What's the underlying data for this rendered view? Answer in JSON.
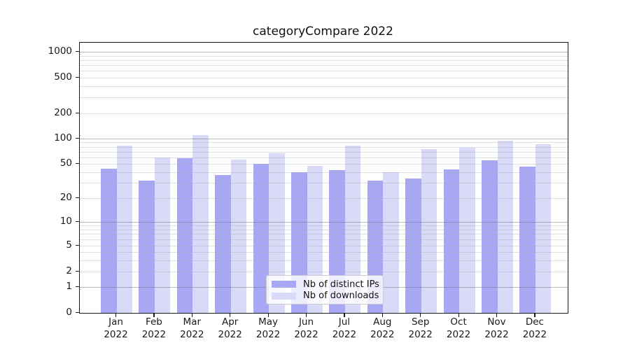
{
  "title": "categoryCompare 2022",
  "chart_data": {
    "type": "bar",
    "title": "categoryCompare 2022",
    "categories": [
      "Jan",
      "Feb",
      "Mar",
      "Apr",
      "May",
      "Jun",
      "Jul",
      "Aug",
      "Sep",
      "Oct",
      "Nov",
      "Dec"
    ],
    "year_label": "2022",
    "series": [
      {
        "name": "Nb of distinct IPs",
        "color": "#a7a7f3",
        "values": [
          44,
          32,
          58,
          37,
          50,
          40,
          42,
          32,
          34,
          43,
          55,
          46
        ]
      },
      {
        "name": "Nb of downloads",
        "color": "#d9d9f8",
        "values": [
          82,
          60,
          110,
          56,
          67,
          47,
          82,
          40,
          75,
          78,
          95,
          86
        ]
      }
    ],
    "xlabel": "",
    "ylabel": "",
    "yscale": "symlog",
    "y_ticks": [
      0,
      1,
      2,
      5,
      10,
      20,
      50,
      100,
      200,
      500,
      1000
    ],
    "ylim": [
      0,
      1300
    ],
    "grid": true,
    "legend_position": "lower center"
  }
}
